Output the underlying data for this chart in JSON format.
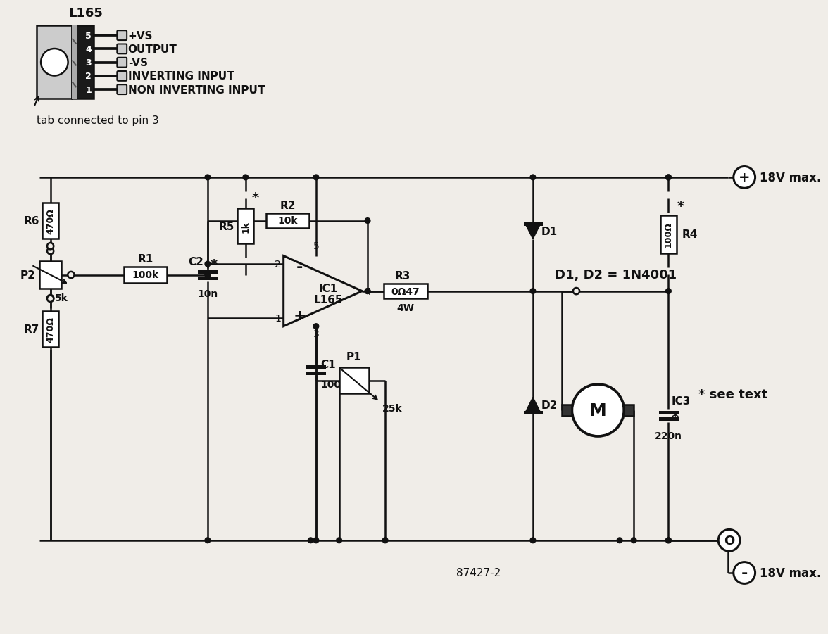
{
  "bg_color": "#f0ede8",
  "line_color": "#111111",
  "component_labels": {
    "L165": "L165",
    "tab_text": "tab connected to pin 3",
    "pin5": "+VS",
    "pin4": "OUTPUT",
    "pin3": "-VS",
    "pin2": "INVERTING INPUT",
    "pin1": "NON INVERTING INPUT",
    "R6": "R6",
    "R6_val": "470Ω",
    "R7": "R7",
    "R7_val": "470Ω",
    "P2": "P2",
    "P2_val": "5k",
    "R1": "R1",
    "R1_val": "100k",
    "C2": "C2",
    "C2_val": "10n",
    "R5": "R5",
    "R5_val": "1k",
    "R2": "R2",
    "R2_val": "10k",
    "R3": "R3",
    "R3_val": "0Ω47",
    "R3_sub": "4W",
    "D1": "D1",
    "D2": "D2",
    "D_val": "D1, D2 = 1N4001",
    "Motor": "M",
    "R4": "R4",
    "R4_val": "100Ω",
    "C1": "C1",
    "C1_val": "100n",
    "C3": "IC3",
    "C3_val": "220n",
    "P1": "P1",
    "P1_val": "25k",
    "V_pos": "18V max.",
    "V_neg": "18V max.",
    "diagram_num": "87427-2",
    "see_text": "* see text"
  },
  "lw": 1.8
}
